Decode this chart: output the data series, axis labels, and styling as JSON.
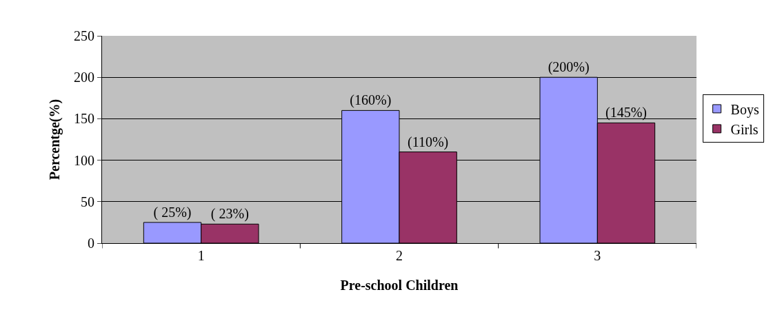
{
  "chart_data": {
    "type": "bar",
    "xlabel": "Pre-school Children",
    "ylabel": "Percentge(%)",
    "categories": [
      "1",
      "2",
      "3"
    ],
    "series": [
      {
        "name": "Boys",
        "color": "#9999ff",
        "values": [
          25,
          160,
          200
        ],
        "value_labels": [
          "( 25%)",
          "(160%)",
          "(200%)"
        ]
      },
      {
        "name": "Girls",
        "color": "#993366",
        "values": [
          23,
          110,
          145
        ],
        "value_labels": [
          "( 23%)",
          "(110%)",
          "(145%)"
        ]
      }
    ],
    "ylim": [
      0,
      250
    ],
    "yticks": [
      0,
      50,
      100,
      150,
      200,
      250
    ],
    "grid": "y",
    "legend": "right"
  }
}
